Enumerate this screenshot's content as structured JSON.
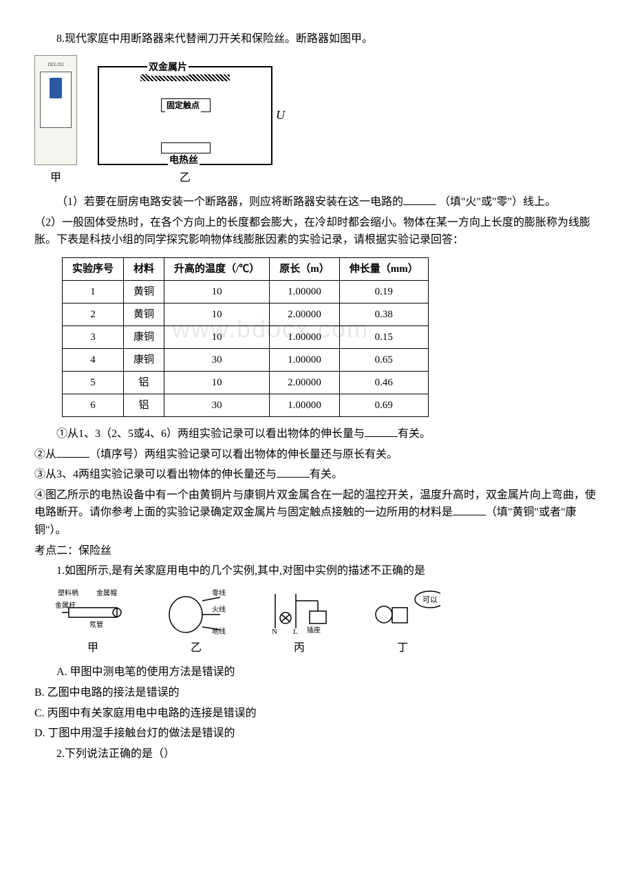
{
  "q8": {
    "stem": "8.现代家庭中用断路器来代替闸刀开关和保险丝。断路器如图甲。",
    "fig_labels": {
      "jia": "甲",
      "yi_char": "乙"
    },
    "circuit": {
      "bimetallic": "双金属片",
      "contact": "固定触点",
      "heater": "电热丝",
      "u": "U"
    },
    "sub1_prefix": "（1）若要在厨房电路安装一个断路器，则应将断路器安装在这一电路的",
    "sub1_suffix": "（填\"火\"或\"零\"）线上。",
    "sub2": "（2）一般固体受热时，在各个方向上的长度都会膨大，在冷却时都会缩小。物体在某一方向上长度的膨胀称为线膨胀。下表是科技小组的同学探究影响物体线膨胀因素的实验记录，请根据实验记录回答：",
    "table": {
      "headers": [
        "实验序号",
        "材料",
        "升高的温度（/℃）",
        "原长（m）",
        "伸长量（mm）"
      ],
      "rows": [
        [
          "1",
          "黄铜",
          "10",
          "1.00000",
          "0.19"
        ],
        [
          "2",
          "黄铜",
          "10",
          "2.00000",
          "0.38"
        ],
        [
          "3",
          "康铜",
          "10",
          "1.00000",
          "0.15"
        ],
        [
          "4",
          "康铜",
          "30",
          "1.00000",
          "0.65"
        ],
        [
          "5",
          "铝",
          "10",
          "2.00000",
          "0.46"
        ],
        [
          "6",
          "铝",
          "30",
          "1.00000",
          "0.69"
        ]
      ]
    },
    "c1_prefix": "①从1、3（2、5或4、6）两组实验记录可以看出物体的伸长量与",
    "c1_suffix": "有关。",
    "c2_prefix": "②从",
    "c2_suffix": "（填序号）两组实验记录可以看出物体的伸长量还与原长有关。",
    "c3_prefix": "③从3、4两组实验记录可以看出物体的伸长量还与",
    "c3_suffix": "有关。",
    "c4_prefix": "④图乙所示的电热设备中有一个由黄铜片与康铜片双金属合在一起的温控开关，温度升高时，双金属片向上弯曲，使电路断开。请你参考上面的实验记录确定双金属片与固定触点接触的一边所用的材料是",
    "c4_suffix": "（填\"黄铜\"或者\"康铜\"）。"
  },
  "kp2": {
    "title": "考点二：保险丝",
    "q1": {
      "stem": "1.如图所示,是有关家庭用电中的几个实例,其中,对图中实例的描述不正确的是",
      "fig_labels": {
        "jia": "甲",
        "yi": "乙",
        "bing": "丙",
        "ding": "丁",
        "plastic_handle": "塑料柄",
        "metal_cap": "金属帽",
        "metal_rod": "金属杆",
        "neon": "氖管",
        "zero_line": "零线",
        "fire_line": "火线",
        "ground_line": "地线",
        "n": "N",
        "l": "L",
        "socket": "插座",
        "ok": "可以"
      },
      "A": "A. 甲图中测电笔的使用方法是错误的",
      "B": "B. 乙图中电路的接法是错误的",
      "C": "C. 丙图中有关家庭用电中电路的连接是错误的",
      "D": "D. 丁图中用湿手接触台灯的做法是错误的"
    },
    "q2": {
      "stem": "2.下列说法正确的是（）"
    }
  },
  "watermark": "www.bdocx.com"
}
